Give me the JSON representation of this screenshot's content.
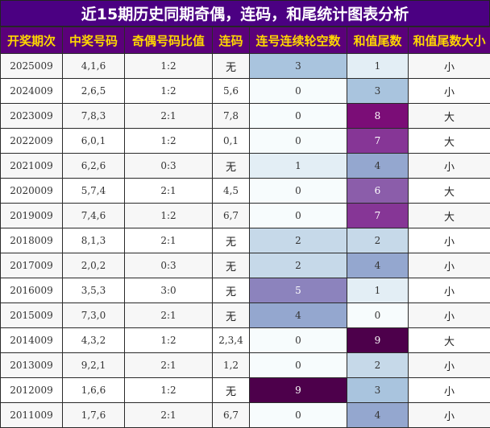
{
  "title": "近15期历史同期奇偶，连码，和尾统计图表分析",
  "headers": [
    "开奖期次",
    "中奖号码",
    "奇偶号码比值",
    "连码",
    "连号连续轮空数",
    "和值尾数",
    "和值尾数大小"
  ],
  "rows": [
    {
      "period": "2025009",
      "numbers": "4,1,6",
      "ratio": "1:2",
      "consec": "无",
      "gap": 3,
      "tail": 1,
      "size": "小"
    },
    {
      "period": "2024009",
      "numbers": "2,6,5",
      "ratio": "1:2",
      "consec": "5,6",
      "gap": 0,
      "tail": 3,
      "size": "小"
    },
    {
      "period": "2023009",
      "numbers": "7,8,3",
      "ratio": "2:1",
      "consec": "7,8",
      "gap": 0,
      "tail": 8,
      "size": "大"
    },
    {
      "period": "2022009",
      "numbers": "6,0,1",
      "ratio": "1:2",
      "consec": "0,1",
      "gap": 0,
      "tail": 7,
      "size": "大"
    },
    {
      "period": "2021009",
      "numbers": "6,2,6",
      "ratio": "0:3",
      "consec": "无",
      "gap": 1,
      "tail": 4,
      "size": "小"
    },
    {
      "period": "2020009",
      "numbers": "5,7,4",
      "ratio": "2:1",
      "consec": "4,5",
      "gap": 0,
      "tail": 6,
      "size": "大"
    },
    {
      "period": "2019009",
      "numbers": "7,4,6",
      "ratio": "1:2",
      "consec": "6,7",
      "gap": 0,
      "tail": 7,
      "size": "大"
    },
    {
      "period": "2018009",
      "numbers": "8,1,3",
      "ratio": "2:1",
      "consec": "无",
      "gap": 2,
      "tail": 2,
      "size": "小"
    },
    {
      "period": "2017009",
      "numbers": "2,0,2",
      "ratio": "0:3",
      "consec": "无",
      "gap": 2,
      "tail": 4,
      "size": "小"
    },
    {
      "period": "2016009",
      "numbers": "3,5,3",
      "ratio": "3:0",
      "consec": "无",
      "gap": 5,
      "tail": 1,
      "size": "小"
    },
    {
      "period": "2015009",
      "numbers": "7,3,0",
      "ratio": "2:1",
      "consec": "无",
      "gap": 4,
      "tail": 0,
      "size": "小"
    },
    {
      "period": "2014009",
      "numbers": "4,3,2",
      "ratio": "1:2",
      "consec": "2,3,4",
      "gap": 0,
      "tail": 9,
      "size": "大"
    },
    {
      "period": "2013009",
      "numbers": "9,2,1",
      "ratio": "2:1",
      "consec": "1,2",
      "gap": 0,
      "tail": 2,
      "size": "小"
    },
    {
      "period": "2012009",
      "numbers": "1,6,6",
      "ratio": "1:2",
      "consec": "无",
      "gap": 9,
      "tail": 3,
      "size": "小"
    },
    {
      "period": "2011009",
      "numbers": "1,7,6",
      "ratio": "2:1",
      "consec": "6,7",
      "gap": 0,
      "tail": 4,
      "size": "小"
    }
  ],
  "colors": {
    "title_bg": "#4b0082",
    "header_bg": "#5b007a",
    "header_text": "#ffd700",
    "heat_low": "#f7fcfd",
    "heat_high": "#4d004b"
  }
}
